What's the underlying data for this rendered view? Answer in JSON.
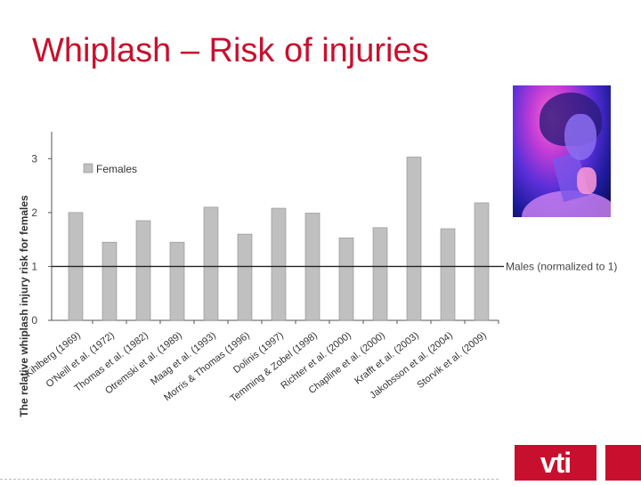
{
  "slide": {
    "title": "Whiplash – Risk of injuries",
    "logo_text": "vti",
    "accent_color": "#c8102e"
  },
  "chart_data": {
    "type": "bar",
    "ylabel": "The relative whiplash injury risk for females",
    "ylim": [
      0,
      3.5
    ],
    "yticks": [
      0,
      1,
      2,
      3
    ],
    "grid": false,
    "legend": {
      "position": "top-left",
      "entries": [
        "Females"
      ]
    },
    "reference_line": {
      "value": 1,
      "label": "Males (normalized to 1)"
    },
    "categories": [
      "Kihlberg (1969)",
      "O'Neill et al. (1972)",
      "Thomas et al. (1982)",
      "Otremski et al. (1989)",
      "Maag et al. (1993)",
      "Morris & Thomas (1996)",
      "Dolinis (1997)",
      "Temming & Zobel (1998)",
      "Richter et al. (2000)",
      "Chapline et al. (2000)",
      "Krafft et al. (2003)",
      "Jakobsson et al. (2004)",
      "Storvik et al. (2009)"
    ],
    "series": [
      {
        "name": "Females",
        "color": "#c0c0c0",
        "values": [
          2.0,
          1.45,
          1.85,
          1.45,
          2.1,
          1.6,
          2.08,
          1.99,
          1.53,
          1.72,
          3.03,
          1.7,
          2.18
        ]
      }
    ]
  }
}
